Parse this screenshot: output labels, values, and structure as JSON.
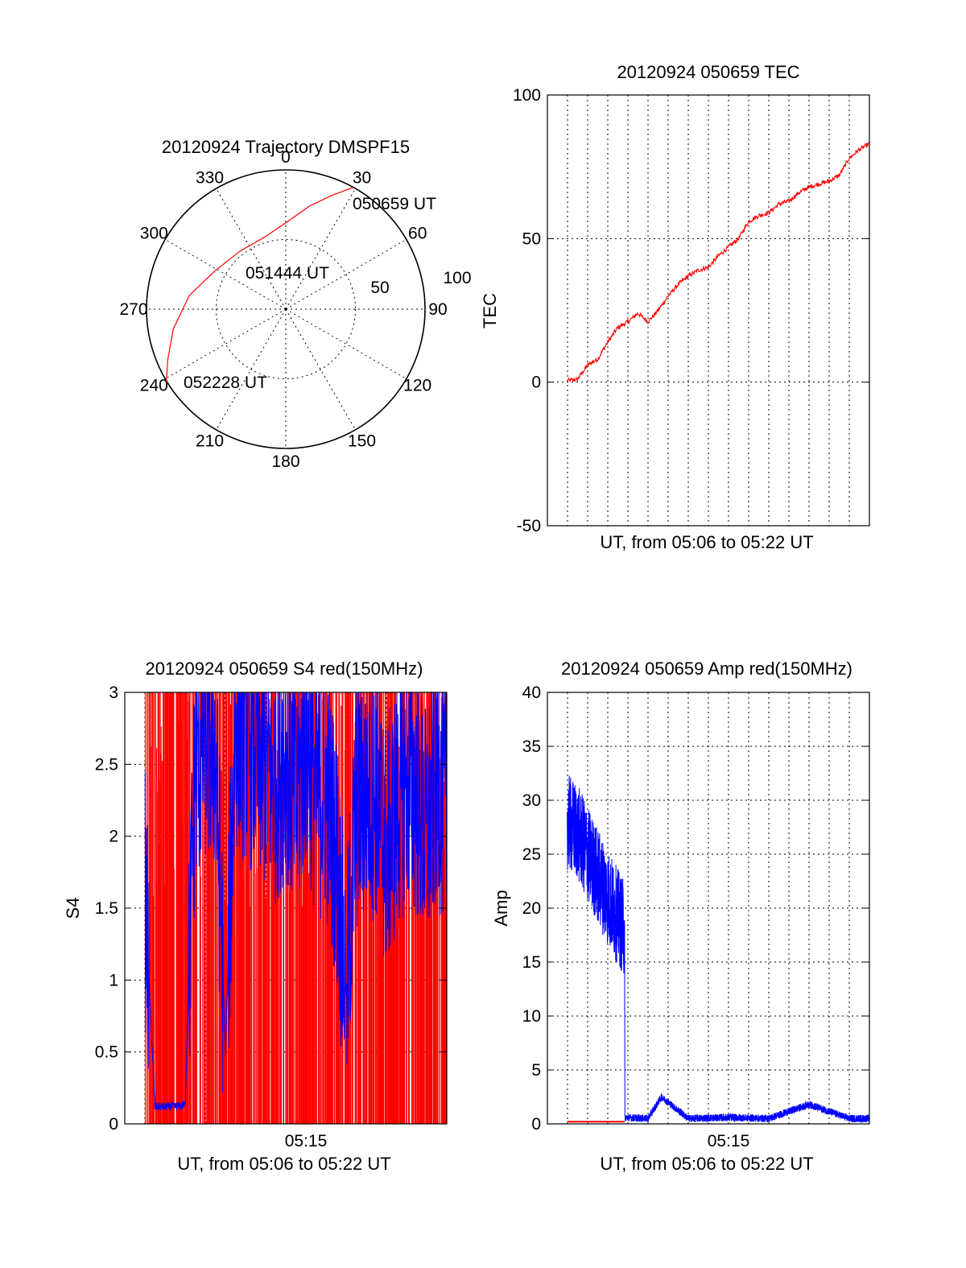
{
  "chart_data": [
    {
      "id": "polar",
      "type": "polar-trajectory",
      "title": "20120924 Trajectory DMSPF15",
      "angle_labels": [
        "0",
        "30",
        "60",
        "90",
        "120",
        "150",
        "180",
        "210",
        "240",
        "270",
        "300",
        "330"
      ],
      "radial_labels": [
        "50",
        "100"
      ],
      "radial_ticks": [
        50,
        100
      ],
      "rmax": 100,
      "trajectory_color": "#ff0000",
      "annotations": [
        "050659 UT",
        "051444 UT",
        "052228 UT"
      ],
      "trajectory": [
        {
          "az": 29,
          "r": 100
        },
        {
          "az": 22,
          "r": 88
        },
        {
          "az": 13,
          "r": 76
        },
        {
          "az": 0,
          "r": 62
        },
        {
          "az": -16,
          "r": 54
        },
        {
          "az": -38,
          "r": 53
        },
        {
          "az": -62,
          "r": 58
        },
        {
          "az": -82,
          "r": 70
        },
        {
          "az": -100,
          "r": 82
        },
        {
          "az": -113,
          "r": 92
        },
        {
          "az": -121,
          "r": 100
        }
      ]
    },
    {
      "id": "tec",
      "type": "line",
      "title": "20120924 050659 TEC",
      "xlabel": "UT, from 05:06 to 05:22 UT",
      "ylabel": "TEC",
      "xlim": [
        "05:06:00",
        "05:22:00"
      ],
      "ylim": [
        -50,
        100
      ],
      "yticks": [
        "-50",
        "0",
        "50",
        "100"
      ],
      "xtick_labels": [],
      "grid": true,
      "series": [
        {
          "color": "#ff0000",
          "x": [
            "05:06:59",
            "05:07:30",
            "05:08:00",
            "05:08:30",
            "05:09:00",
            "05:09:30",
            "05:10:00",
            "05:10:30",
            "05:11:00",
            "05:11:30",
            "05:12:00",
            "05:12:30",
            "05:13:00",
            "05:13:30",
            "05:14:00",
            "05:14:30",
            "05:15:00",
            "05:15:30",
            "05:16:00",
            "05:16:30",
            "05:17:00",
            "05:17:30",
            "05:18:00",
            "05:18:30",
            "05:19:00",
            "05:19:30",
            "05:20:00",
            "05:20:30",
            "05:21:00",
            "05:21:30",
            "05:22:00"
          ],
          "values": [
            0.5,
            1,
            6,
            8,
            14,
            19,
            21,
            24,
            21,
            25,
            30,
            34,
            37,
            39,
            40,
            44,
            47,
            50,
            56,
            58,
            59,
            62,
            63,
            66,
            68,
            69,
            70,
            72,
            78,
            81,
            83
          ]
        }
      ]
    },
    {
      "id": "s4",
      "type": "line",
      "title": "20120924 050659 S4 red(150MHz)",
      "xlabel": "UT, from 05:06 to 05:22 UT",
      "ylabel": "S4",
      "xlim": [
        "05:06:00",
        "05:22:00"
      ],
      "ylim": [
        0,
        3
      ],
      "yticks": [
        "0",
        "0.5",
        "1",
        "1.5",
        "2",
        "2.5",
        "3"
      ],
      "xtick_labels": [
        "05:15"
      ],
      "grid": true,
      "series": [
        {
          "color": "#ff0000",
          "style": "dense vertical spikes between 0 and 3",
          "x_range": [
            "05:07:00",
            "05:22:00"
          ]
        },
        {
          "color": "#0000ff",
          "x": [
            "05:07:00",
            "05:07:30",
            "05:08:00",
            "05:08:30",
            "05:09:00",
            "05:09:30",
            "05:10:00",
            "05:10:30",
            "05:11:00",
            "05:11:30",
            "05:12:00",
            "05:12:30",
            "05:13:00",
            "05:13:30",
            "05:14:00",
            "05:14:30",
            "05:15:00",
            "05:15:30",
            "05:16:00",
            "05:16:30",
            "05:17:00",
            "05:17:30",
            "05:18:00",
            "05:18:30",
            "05:19:00",
            "05:19:30",
            "05:20:00",
            "05:20:30",
            "05:21:00",
            "05:21:30",
            "05:22:00"
          ],
          "values": [
            1.6,
            0.12,
            0.12,
            0.12,
            0.13,
            2.5,
            2.7,
            2.6,
            0.5,
            2.8,
            2.7,
            2.6,
            2.5,
            2.4,
            2.6,
            2.2,
            2.7,
            2.3,
            2.3,
            1.9,
            0.9,
            2.2,
            2.3,
            2.3,
            1.9,
            2.2,
            2.4,
            2.3,
            2.0,
            2.4,
            2.2
          ]
        }
      ]
    },
    {
      "id": "amp",
      "type": "line",
      "title": "20120924 050659 Amp red(150MHz)",
      "xlabel": "UT, from 05:06 to 05:22 UT",
      "ylabel": "Amp",
      "xlim": [
        "05:06:00",
        "05:22:00"
      ],
      "ylim": [
        0,
        40
      ],
      "yticks": [
        "0",
        "5",
        "10",
        "15",
        "20",
        "25",
        "30",
        "35",
        "40"
      ],
      "xtick_labels": [
        "05:15"
      ],
      "grid": true,
      "series": [
        {
          "color": "#0000ff",
          "style": "dense noisy band",
          "x": [
            "05:06:59",
            "05:07:30",
            "05:08:00",
            "05:08:30",
            "05:09:00",
            "05:09:50",
            "05:09:51",
            "05:11:00",
            "05:11:40",
            "05:13:00",
            "05:15:00",
            "05:17:00",
            "05:19:00",
            "05:21:00",
            "05:22:00"
          ],
          "values": [
            28,
            27,
            25,
            23,
            21,
            18,
            0.6,
            0.5,
            2.5,
            0.5,
            0.6,
            0.5,
            1.8,
            0.5,
            0.5
          ]
        },
        {
          "color": "#ff0000",
          "x": [
            "05:06:59",
            "05:09:50"
          ],
          "values": [
            0.2,
            0.2
          ]
        }
      ]
    }
  ]
}
